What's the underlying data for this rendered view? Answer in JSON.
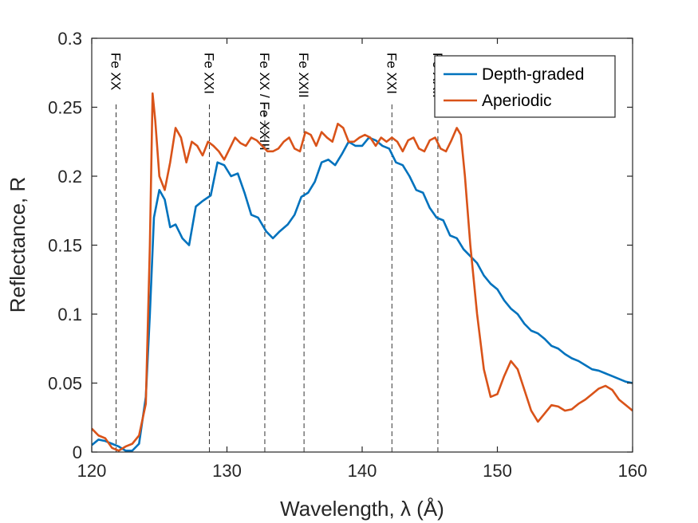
{
  "chart_data": {
    "type": "line",
    "title": "",
    "xlabel": "Wavelength, λ (Å)",
    "ylabel": "Reflectance, R",
    "xlim": [
      120,
      160
    ],
    "ylim": [
      0,
      0.3
    ],
    "xticks": [
      120,
      130,
      140,
      150,
      160
    ],
    "xtick_labels": [
      "120",
      "130",
      "140",
      "150",
      "160"
    ],
    "yticks": [
      0,
      0.05,
      0.1,
      0.15,
      0.2,
      0.25,
      0.3
    ],
    "ytick_labels": [
      "0",
      "0.05",
      "0.1",
      "0.15",
      "0.2",
      "0.25",
      "0.3"
    ],
    "grid": false,
    "legend_position": "top-right",
    "series": [
      {
        "name": "Depth-graded",
        "color": "#0072BD",
        "x": [
          120,
          120.5,
          121,
          121.5,
          122,
          122.5,
          123,
          123.5,
          124,
          124.3,
          124.6,
          125,
          125.4,
          125.8,
          126.2,
          126.7,
          127.2,
          127.7,
          128.2,
          128.8,
          129.3,
          129.8,
          130.3,
          130.8,
          131.3,
          131.8,
          132.3,
          132.9,
          133.4,
          133.9,
          134.5,
          135.0,
          135.5,
          136.0,
          136.5,
          137.0,
          137.5,
          138.0,
          138.5,
          139.0,
          139.5,
          140.0,
          140.5,
          141.0,
          141.5,
          142.0,
          142.5,
          143.0,
          143.5,
          144.0,
          144.5,
          145.0,
          145.5,
          146.0,
          146.5,
          147.0,
          147.5,
          148.0,
          148.5,
          149.0,
          149.5,
          150.0,
          150.5,
          151.0,
          151.5,
          152.0,
          152.5,
          153.0,
          153.5,
          154.0,
          154.5,
          155.0,
          155.5,
          156.0,
          156.5,
          157.0,
          157.5,
          158.0,
          158.5,
          159.0,
          159.5,
          160.0
        ],
        "y": [
          0.005,
          0.009,
          0.008,
          0.006,
          0.004,
          0.001,
          0.001,
          0.006,
          0.04,
          0.1,
          0.17,
          0.19,
          0.183,
          0.163,
          0.165,
          0.155,
          0.15,
          0.178,
          0.182,
          0.186,
          0.21,
          0.208,
          0.2,
          0.202,
          0.188,
          0.172,
          0.17,
          0.16,
          0.155,
          0.16,
          0.165,
          0.172,
          0.185,
          0.188,
          0.196,
          0.21,
          0.212,
          0.208,
          0.216,
          0.225,
          0.222,
          0.222,
          0.228,
          0.226,
          0.222,
          0.22,
          0.21,
          0.208,
          0.2,
          0.19,
          0.188,
          0.177,
          0.17,
          0.168,
          0.157,
          0.155,
          0.147,
          0.142,
          0.137,
          0.128,
          0.122,
          0.118,
          0.11,
          0.104,
          0.1,
          0.093,
          0.088,
          0.086,
          0.082,
          0.077,
          0.075,
          0.071,
          0.068,
          0.066,
          0.063,
          0.06,
          0.059,
          0.057,
          0.055,
          0.053,
          0.051,
          0.05
        ]
      },
      {
        "name": "Aperiodic",
        "color": "#D95319",
        "x": [
          120,
          120.5,
          121,
          121.5,
          122,
          122.5,
          123,
          123.5,
          124,
          124.3,
          124.5,
          124.7,
          125,
          125.4,
          125.8,
          126.2,
          126.6,
          127.0,
          127.4,
          127.8,
          128.2,
          128.6,
          129.0,
          129.4,
          129.8,
          130.2,
          130.6,
          131.0,
          131.4,
          131.8,
          132.2,
          132.6,
          133.0,
          133.4,
          133.8,
          134.2,
          134.6,
          135.0,
          135.4,
          135.8,
          136.2,
          136.6,
          137.0,
          137.4,
          137.8,
          138.2,
          138.6,
          139.0,
          139.4,
          139.8,
          140.2,
          140.6,
          141.0,
          141.4,
          141.8,
          142.2,
          142.6,
          143.0,
          143.4,
          143.8,
          144.2,
          144.6,
          145.0,
          145.4,
          145.8,
          146.2,
          146.6,
          147.0,
          147.3,
          147.6,
          148.0,
          148.5,
          149.0,
          149.5,
          150.0,
          150.5,
          151.0,
          151.5,
          152.0,
          152.5,
          153.0,
          153.5,
          154.0,
          154.5,
          155.0,
          155.5,
          156.0,
          156.5,
          157.0,
          157.5,
          158.0,
          158.5,
          159.0,
          159.5,
          160.0
        ],
        "y": [
          0.017,
          0.012,
          0.01,
          0.003,
          0.001,
          0.004,
          0.006,
          0.012,
          0.035,
          0.15,
          0.26,
          0.24,
          0.2,
          0.19,
          0.21,
          0.235,
          0.228,
          0.21,
          0.225,
          0.222,
          0.215,
          0.225,
          0.222,
          0.218,
          0.212,
          0.22,
          0.228,
          0.224,
          0.222,
          0.228,
          0.226,
          0.222,
          0.218,
          0.218,
          0.22,
          0.225,
          0.228,
          0.22,
          0.218,
          0.232,
          0.23,
          0.222,
          0.232,
          0.228,
          0.225,
          0.238,
          0.235,
          0.225,
          0.225,
          0.228,
          0.23,
          0.228,
          0.222,
          0.228,
          0.225,
          0.228,
          0.225,
          0.218,
          0.226,
          0.228,
          0.22,
          0.218,
          0.226,
          0.228,
          0.22,
          0.218,
          0.226,
          0.235,
          0.23,
          0.2,
          0.15,
          0.1,
          0.06,
          0.04,
          0.042,
          0.055,
          0.066,
          0.06,
          0.045,
          0.03,
          0.022,
          0.028,
          0.034,
          0.033,
          0.03,
          0.031,
          0.035,
          0.038,
          0.042,
          0.046,
          0.048,
          0.045,
          0.038,
          0.034,
          0.03
        ]
      }
    ],
    "annotations": [
      {
        "label": "Fe XX",
        "x": 121.8
      },
      {
        "label": "Fe XXI",
        "x": 128.7
      },
      {
        "label": "Fe XX / Fe XXIII",
        "x": 132.8
      },
      {
        "label": "Fe XXII",
        "x": 135.7
      },
      {
        "label": "Fe XXI",
        "x": 142.2
      },
      {
        "label": "Fe XXII",
        "x": 145.6
      }
    ]
  }
}
